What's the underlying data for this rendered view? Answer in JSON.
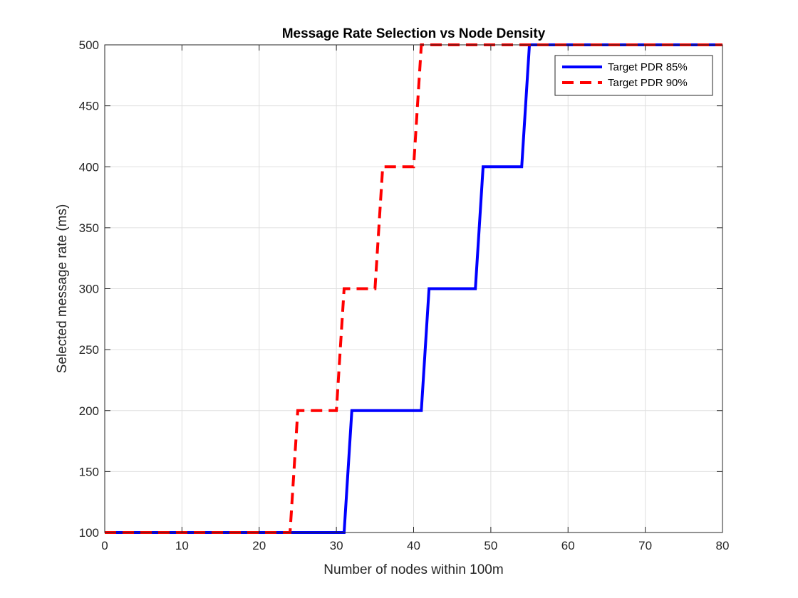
{
  "chart_data": {
    "type": "line",
    "title": "Message Rate Selection vs Node Density",
    "xlabel": "Number of nodes within 100m",
    "ylabel": "Selected message rate (ms)",
    "xlim": [
      0,
      80
    ],
    "ylim": [
      100,
      500
    ],
    "xticks": [
      0,
      10,
      20,
      30,
      40,
      50,
      60,
      70,
      80
    ],
    "yticks": [
      100,
      150,
      200,
      250,
      300,
      350,
      400,
      450,
      500
    ],
    "grid": true,
    "legend_position": "top-right",
    "series": [
      {
        "name": "Target PDR 85%",
        "color": "#0000ff",
        "style": "solid",
        "x": [
          0,
          31,
          32,
          41,
          42,
          48,
          49,
          54,
          55,
          80
        ],
        "y": [
          100,
          100,
          200,
          200,
          300,
          300,
          400,
          400,
          500,
          500
        ]
      },
      {
        "name": "Target PDR 90%",
        "color": "#ff0000",
        "style": "dashed",
        "x": [
          0,
          24,
          25,
          30,
          31,
          35,
          36,
          40,
          41,
          80
        ],
        "y": [
          100,
          100,
          200,
          200,
          300,
          300,
          400,
          400,
          500,
          500
        ]
      }
    ]
  }
}
